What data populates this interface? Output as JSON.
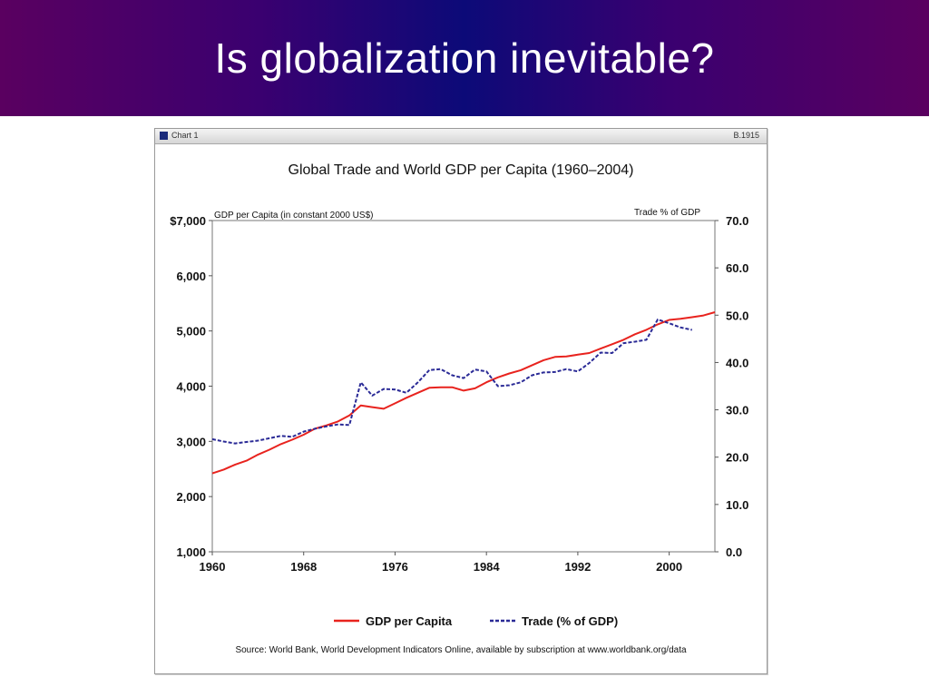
{
  "slide": {
    "title": "Is globalization inevitable?"
  },
  "window": {
    "label": "Chart 1",
    "code": "B.1915"
  },
  "colors": {
    "gdp": "#e8231e",
    "trade": "#2a2a96",
    "banner_center": "#0c0a78",
    "banner_edge": "#5a0060"
  },
  "chart_data": {
    "type": "line",
    "title": "Global Trade and World GDP per Capita (1960–2004)",
    "left_axis_label": "GDP per Capita (in constant 2000 US$)",
    "right_axis_label": "Trade % of GDP",
    "x_ticks": [
      "1960",
      "1968",
      "1976",
      "1984",
      "1992",
      "2000"
    ],
    "x_tick_values": [
      1960,
      1968,
      1976,
      1984,
      1992,
      2000
    ],
    "xlim": [
      1960,
      2004
    ],
    "y_left_ticks": [
      "$7,000",
      "6,000",
      "5,000",
      "4,000",
      "3,000",
      "2,000",
      "1,000"
    ],
    "y_left_tick_values": [
      7000,
      6000,
      5000,
      4000,
      3000,
      2000,
      1000
    ],
    "y_left_lim": [
      1000,
      7000
    ],
    "y_right_ticks": [
      "70.0",
      "60.0",
      "50.0",
      "40.0",
      "30.0",
      "20.0",
      "10.0",
      "0.0"
    ],
    "y_right_tick_values": [
      70,
      60,
      50,
      40,
      30,
      20,
      10,
      0
    ],
    "y_right_lim": [
      0,
      70
    ],
    "grid": false,
    "legend_position": "bottom",
    "series": [
      {
        "name": "GDP per Capita",
        "axis": "left",
        "style": "solid",
        "x": [
          1960,
          1961,
          1962,
          1963,
          1964,
          1965,
          1966,
          1967,
          1968,
          1969,
          1970,
          1971,
          1972,
          1973,
          1974,
          1975,
          1976,
          1977,
          1978,
          1979,
          1980,
          1981,
          1982,
          1983,
          1984,
          1985,
          1986,
          1987,
          1988,
          1989,
          1990,
          1991,
          1992,
          1993,
          1994,
          1995,
          1996,
          1997,
          1998,
          1999,
          2000,
          2001,
          2002,
          2003,
          2004
        ],
        "values": [
          2420,
          2490,
          2580,
          2650,
          2760,
          2850,
          2950,
          3030,
          3120,
          3230,
          3290,
          3360,
          3470,
          3650,
          3620,
          3590,
          3690,
          3790,
          3880,
          3970,
          3980,
          3980,
          3920,
          3960,
          4070,
          4160,
          4230,
          4290,
          4380,
          4470,
          4530,
          4540,
          4570,
          4600,
          4680,
          4760,
          4840,
          4940,
          5020,
          5120,
          5200,
          5220,
          5250,
          5280,
          5340
        ]
      },
      {
        "name": "Trade (% of GDP)",
        "axis": "right",
        "style": "dashed",
        "x": [
          1960,
          1961,
          1962,
          1963,
          1964,
          1965,
          1966,
          1967,
          1968,
          1969,
          1970,
          1971,
          1972,
          1973,
          1974,
          1975,
          1976,
          1977,
          1978,
          1979,
          1980,
          1981,
          1982,
          1983,
          1984,
          1985,
          1986,
          1987,
          1988,
          1989,
          1990,
          1991,
          1992,
          1993,
          1994,
          1995,
          1996,
          1997,
          1998,
          1999,
          2000,
          2001,
          2002
        ],
        "values": [
          23.8,
          23.3,
          22.9,
          23.2,
          23.5,
          24.0,
          24.5,
          24.3,
          25.4,
          26.0,
          26.5,
          26.9,
          26.8,
          35.8,
          33.0,
          34.4,
          34.3,
          33.6,
          35.8,
          38.4,
          38.6,
          37.3,
          36.7,
          38.5,
          38.1,
          35.0,
          35.2,
          35.8,
          37.3,
          37.9,
          38.0,
          38.6,
          38.1,
          39.9,
          42.1,
          42.0,
          44.1,
          44.4,
          44.8,
          49.1,
          48.3,
          47.4,
          46.9
        ]
      }
    ],
    "source_note": "Source: World Bank, World Development Indicators Online, available by subscription at www.worldbank.org/data"
  }
}
